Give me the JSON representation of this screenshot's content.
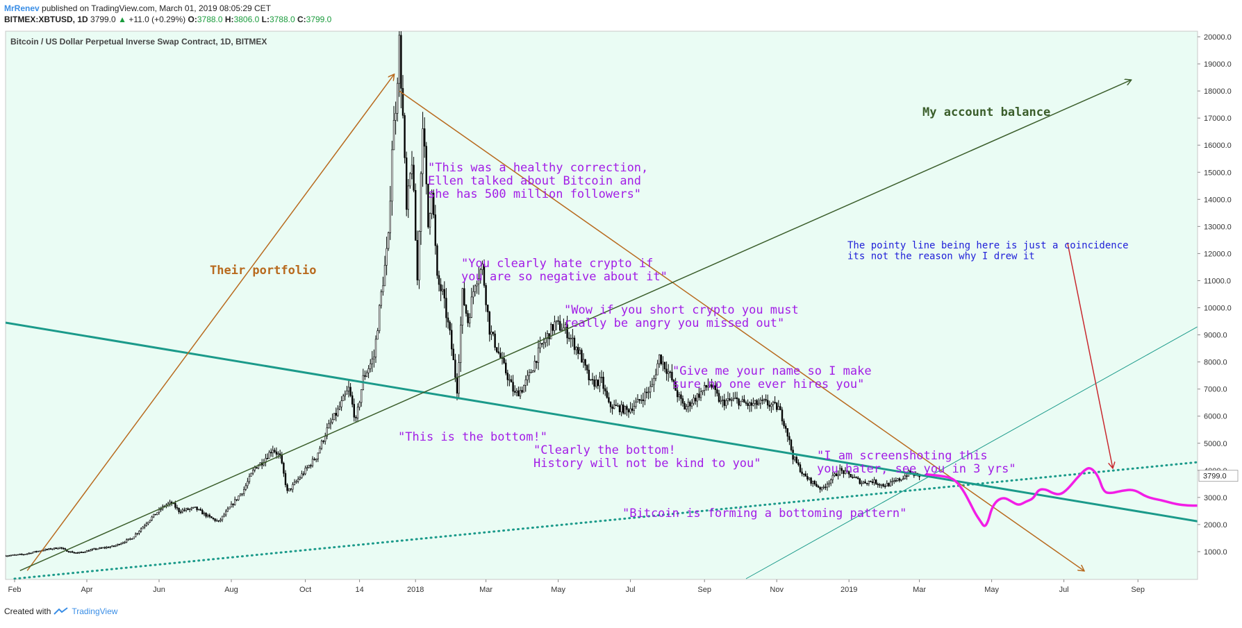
{
  "header": {
    "author": "MrRenev",
    "published": "published on TradingView.com, March 01, 2019 08:05:29 CET",
    "symbol": "BITMEX:XBTUSD, 1D",
    "last": "3799.0",
    "change_arrow": "▲",
    "change": "+11.0 (+0.29%)",
    "o_label": "O:",
    "o_val": "3788.0",
    "h_label": "H:",
    "h_val": "3806.0",
    "l_label": "L:",
    "l_val": "3788.0",
    "c_label": "C:",
    "c_val": "3799.0"
  },
  "footer": {
    "created": "Created with",
    "brand": "TradingView"
  },
  "colors": {
    "plot_bg": "#eafcf4",
    "candle": "#000000",
    "trend_teal": "#1b9a8a",
    "orange": "#b86a1e",
    "dark_green": "#3b5e2b",
    "purple": "#a21ce6",
    "blue": "#1e1ed8",
    "red": "#c8282e",
    "magenta": "#f21ee6"
  },
  "chart_data": {
    "type": "line",
    "title": "Bitcoin / US Dollar Perpetual Inverse Swap Contract, 1D, BITMEX",
    "price_label": "3799.0",
    "ylim": [
      0,
      20500
    ],
    "y_ticks": [
      1000,
      2000,
      3000,
      4000,
      5000,
      6000,
      7000,
      8000,
      9000,
      10000,
      11000,
      12000,
      13000,
      14000,
      15000,
      16000,
      17000,
      18000,
      19000,
      20000
    ],
    "y_tick_labels": [
      "1000.0",
      "2000.0",
      "3000.0",
      "4000.0",
      "5000.0",
      "6000.0",
      "7000.0",
      "8000.0",
      "9000.0",
      "10000.0",
      "11000.0",
      "12000.0",
      "13000.0",
      "14000.0",
      "15000.0",
      "16000.0",
      "17000.0",
      "18000.0",
      "19000.0",
      "20000.0"
    ],
    "xlim": [
      0,
      660
    ],
    "x_ticks": [
      {
        "t": 5,
        "label": "Feb"
      },
      {
        "t": 45,
        "label": "Apr"
      },
      {
        "t": 85,
        "label": "Jun"
      },
      {
        "t": 125,
        "label": "Aug"
      },
      {
        "t": 166,
        "label": "Oct"
      },
      {
        "t": 196,
        "label": "14"
      },
      {
        "t": 227,
        "label": "2018"
      },
      {
        "t": 266,
        "label": "Mar"
      },
      {
        "t": 306,
        "label": "May"
      },
      {
        "t": 346,
        "label": "Jul"
      },
      {
        "t": 387,
        "label": "Sep"
      },
      {
        "t": 427,
        "label": "Nov"
      },
      {
        "t": 467,
        "label": "2019"
      },
      {
        "t": 506,
        "label": "Mar"
      },
      {
        "t": 546,
        "label": "May"
      },
      {
        "t": 586,
        "label": "Jul"
      },
      {
        "t": 627,
        "label": "Sep"
      }
    ],
    "price_path": [
      [
        0,
        850
      ],
      [
        10,
        900
      ],
      [
        20,
        1050
      ],
      [
        30,
        1150
      ],
      [
        35,
        1000
      ],
      [
        40,
        950
      ],
      [
        50,
        1100
      ],
      [
        60,
        1200
      ],
      [
        70,
        1500
      ],
      [
        80,
        2200
      ],
      [
        88,
        2700
      ],
      [
        92,
        2800
      ],
      [
        96,
        2500
      ],
      [
        105,
        2600
      ],
      [
        112,
        2300
      ],
      [
        118,
        2100
      ],
      [
        125,
        2700
      ],
      [
        132,
        3300
      ],
      [
        138,
        4100
      ],
      [
        142,
        4300
      ],
      [
        148,
        4800
      ],
      [
        152,
        4500
      ],
      [
        156,
        3200
      ],
      [
        160,
        3500
      ],
      [
        166,
        4000
      ],
      [
        172,
        4500
      ],
      [
        178,
        5500
      ],
      [
        184,
        6200
      ],
      [
        190,
        7000
      ],
      [
        194,
        5800
      ],
      [
        198,
        7400
      ],
      [
        204,
        8200
      ],
      [
        208,
        10500
      ],
      [
        212,
        12500
      ],
      [
        214,
        16000
      ],
      [
        216,
        17500
      ],
      [
        218,
        19800
      ],
      [
        220,
        17000
      ],
      [
        222,
        13500
      ],
      [
        225,
        15500
      ],
      [
        228,
        11000
      ],
      [
        231,
        17000
      ],
      [
        234,
        13000
      ],
      [
        236,
        14500
      ],
      [
        239,
        11000
      ],
      [
        242,
        10500
      ],
      [
        246,
        9000
      ],
      [
        250,
        7000
      ],
      [
        253,
        10500
      ],
      [
        256,
        9500
      ],
      [
        260,
        11000
      ],
      [
        264,
        11500
      ],
      [
        268,
        9200
      ],
      [
        272,
        8500
      ],
      [
        276,
        7800
      ],
      [
        282,
        6800
      ],
      [
        286,
        7000
      ],
      [
        290,
        7500
      ],
      [
        296,
        8500
      ],
      [
        304,
        9400
      ],
      [
        310,
        9200
      ],
      [
        318,
        8300
      ],
      [
        324,
        7200
      ],
      [
        330,
        7300
      ],
      [
        334,
        6400
      ],
      [
        340,
        6300
      ],
      [
        344,
        6200
      ],
      [
        350,
        6500
      ],
      [
        358,
        7100
      ],
      [
        362,
        8200
      ],
      [
        368,
        7500
      ],
      [
        372,
        6800
      ],
      [
        376,
        6300
      ],
      [
        384,
        6800
      ],
      [
        390,
        7200
      ],
      [
        396,
        6500
      ],
      [
        404,
        6600
      ],
      [
        412,
        6400
      ],
      [
        420,
        6500
      ],
      [
        428,
        6300
      ],
      [
        432,
        5600
      ],
      [
        436,
        4500
      ],
      [
        442,
        3800
      ],
      [
        448,
        3500
      ],
      [
        452,
        3300
      ],
      [
        456,
        3600
      ],
      [
        462,
        4000
      ],
      [
        468,
        3800
      ],
      [
        474,
        3550
      ],
      [
        480,
        3600
      ],
      [
        486,
        3450
      ],
      [
        490,
        3500
      ],
      [
        496,
        3700
      ],
      [
        500,
        3900
      ],
      [
        506,
        3800
      ]
    ],
    "trend_lines": [
      {
        "name": "teal-trend-main",
        "color": "#1b9a8a",
        "width": 3,
        "dash": false,
        "from": [
          0,
          9450
        ],
        "to": [
          660,
          2120
        ]
      },
      {
        "name": "teal-trend-thin",
        "color": "#1b9a8a",
        "width": 1,
        "dash": false,
        "from": [
          410,
          0
        ],
        "to": [
          660,
          9300
        ]
      },
      {
        "name": "teal-trend-dotted",
        "color": "#1b9a8a",
        "width": 3,
        "dash": true,
        "from": [
          5,
          0
        ],
        "to": [
          660,
          4300
        ]
      },
      {
        "name": "orange-up-line",
        "color": "#b86a1e",
        "width": 1.5,
        "dash": false,
        "from": [
          12,
          300
        ],
        "to": [
          215,
          18600
        ],
        "arrow": true
      },
      {
        "name": "orange-down-line",
        "color": "#b86a1e",
        "width": 1.5,
        "dash": false,
        "from": [
          218,
          18000
        ],
        "to": [
          597,
          300
        ],
        "arrow": true
      },
      {
        "name": "green-balance-line",
        "color": "#3b5e2b",
        "width": 1.5,
        "dash": false,
        "from": [
          8,
          300
        ],
        "to": [
          623,
          18400
        ],
        "arrow": true
      },
      {
        "name": "red-pointer-line",
        "color": "#c8282e",
        "width": 1.5,
        "dash": false,
        "from": [
          588,
          12400
        ],
        "to": [
          613,
          4100
        ],
        "arrow": true
      }
    ],
    "forecast_path": [
      [
        510,
        3850
      ],
      [
        518,
        3800
      ],
      [
        525,
        3700
      ],
      [
        530,
        3300
      ],
      [
        534,
        2800
      ],
      [
        537,
        2400
      ],
      [
        540,
        2100
      ],
      [
        542,
        1900
      ],
      [
        544,
        2100
      ],
      [
        546,
        2600
      ],
      [
        549,
        2900
      ],
      [
        553,
        3000
      ],
      [
        557,
        2850
      ],
      [
        561,
        2700
      ],
      [
        565,
        2850
      ],
      [
        569,
        2950
      ],
      [
        572,
        3300
      ],
      [
        576,
        3300
      ],
      [
        580,
        3150
      ],
      [
        584,
        3100
      ],
      [
        588,
        3300
      ],
      [
        593,
        3700
      ],
      [
        598,
        4050
      ],
      [
        601,
        4100
      ],
      [
        605,
        3800
      ],
      [
        608,
        3200
      ],
      [
        612,
        3150
      ],
      [
        618,
        3250
      ],
      [
        625,
        3300
      ],
      [
        632,
        3000
      ],
      [
        640,
        2900
      ],
      [
        648,
        2750
      ],
      [
        655,
        2700
      ],
      [
        660,
        2700
      ]
    ],
    "annotations": [
      {
        "name": "their-portfolio-label",
        "text": "Their portfolio",
        "color": "#b86a1e",
        "bold": true
      },
      {
        "name": "account-balance-label",
        "text": "My account balance",
        "color": "#3b5e2b",
        "bold": true
      },
      {
        "name": "healthy-correction-label",
        "text": "\"This was a healthy correction,\nEllen talked about Bitcoin and\nshe has 500 million followers\"",
        "color": "#a21ce6"
      },
      {
        "name": "hate-crypto-label",
        "text": "\"You clearly hate crypto if\nyou are so negative about it\"",
        "color": "#a21ce6"
      },
      {
        "name": "short-crypto-label",
        "text": "\"Wow if you short crypto you must\nreally be angry you missed out\"",
        "color": "#a21ce6"
      },
      {
        "name": "give-name-label",
        "text": "\"Give me your name so I make\nsure no one ever hires you\"",
        "color": "#a21ce6"
      },
      {
        "name": "this-is-bottom-label",
        "text": "\"This is the bottom!\"",
        "color": "#a21ce6"
      },
      {
        "name": "clearly-bottom-label",
        "text": "\"Clearly the bottom!\nHistory will not be kind to you\"",
        "color": "#a21ce6"
      },
      {
        "name": "screenshoting-label",
        "text": "\"I am screenshoting this\nyou hater, see you in 3 yrs\"",
        "color": "#a21ce6"
      },
      {
        "name": "bottoming-pattern-label",
        "text": "\"Bitcoin is forming a bottoming pattern\"",
        "color": "#a21ce6"
      },
      {
        "name": "coincidence-label",
        "text": "The pointy line being here is just a coincidence\nits not the reason why I drew it",
        "color": "#1e1ed8"
      }
    ]
  }
}
